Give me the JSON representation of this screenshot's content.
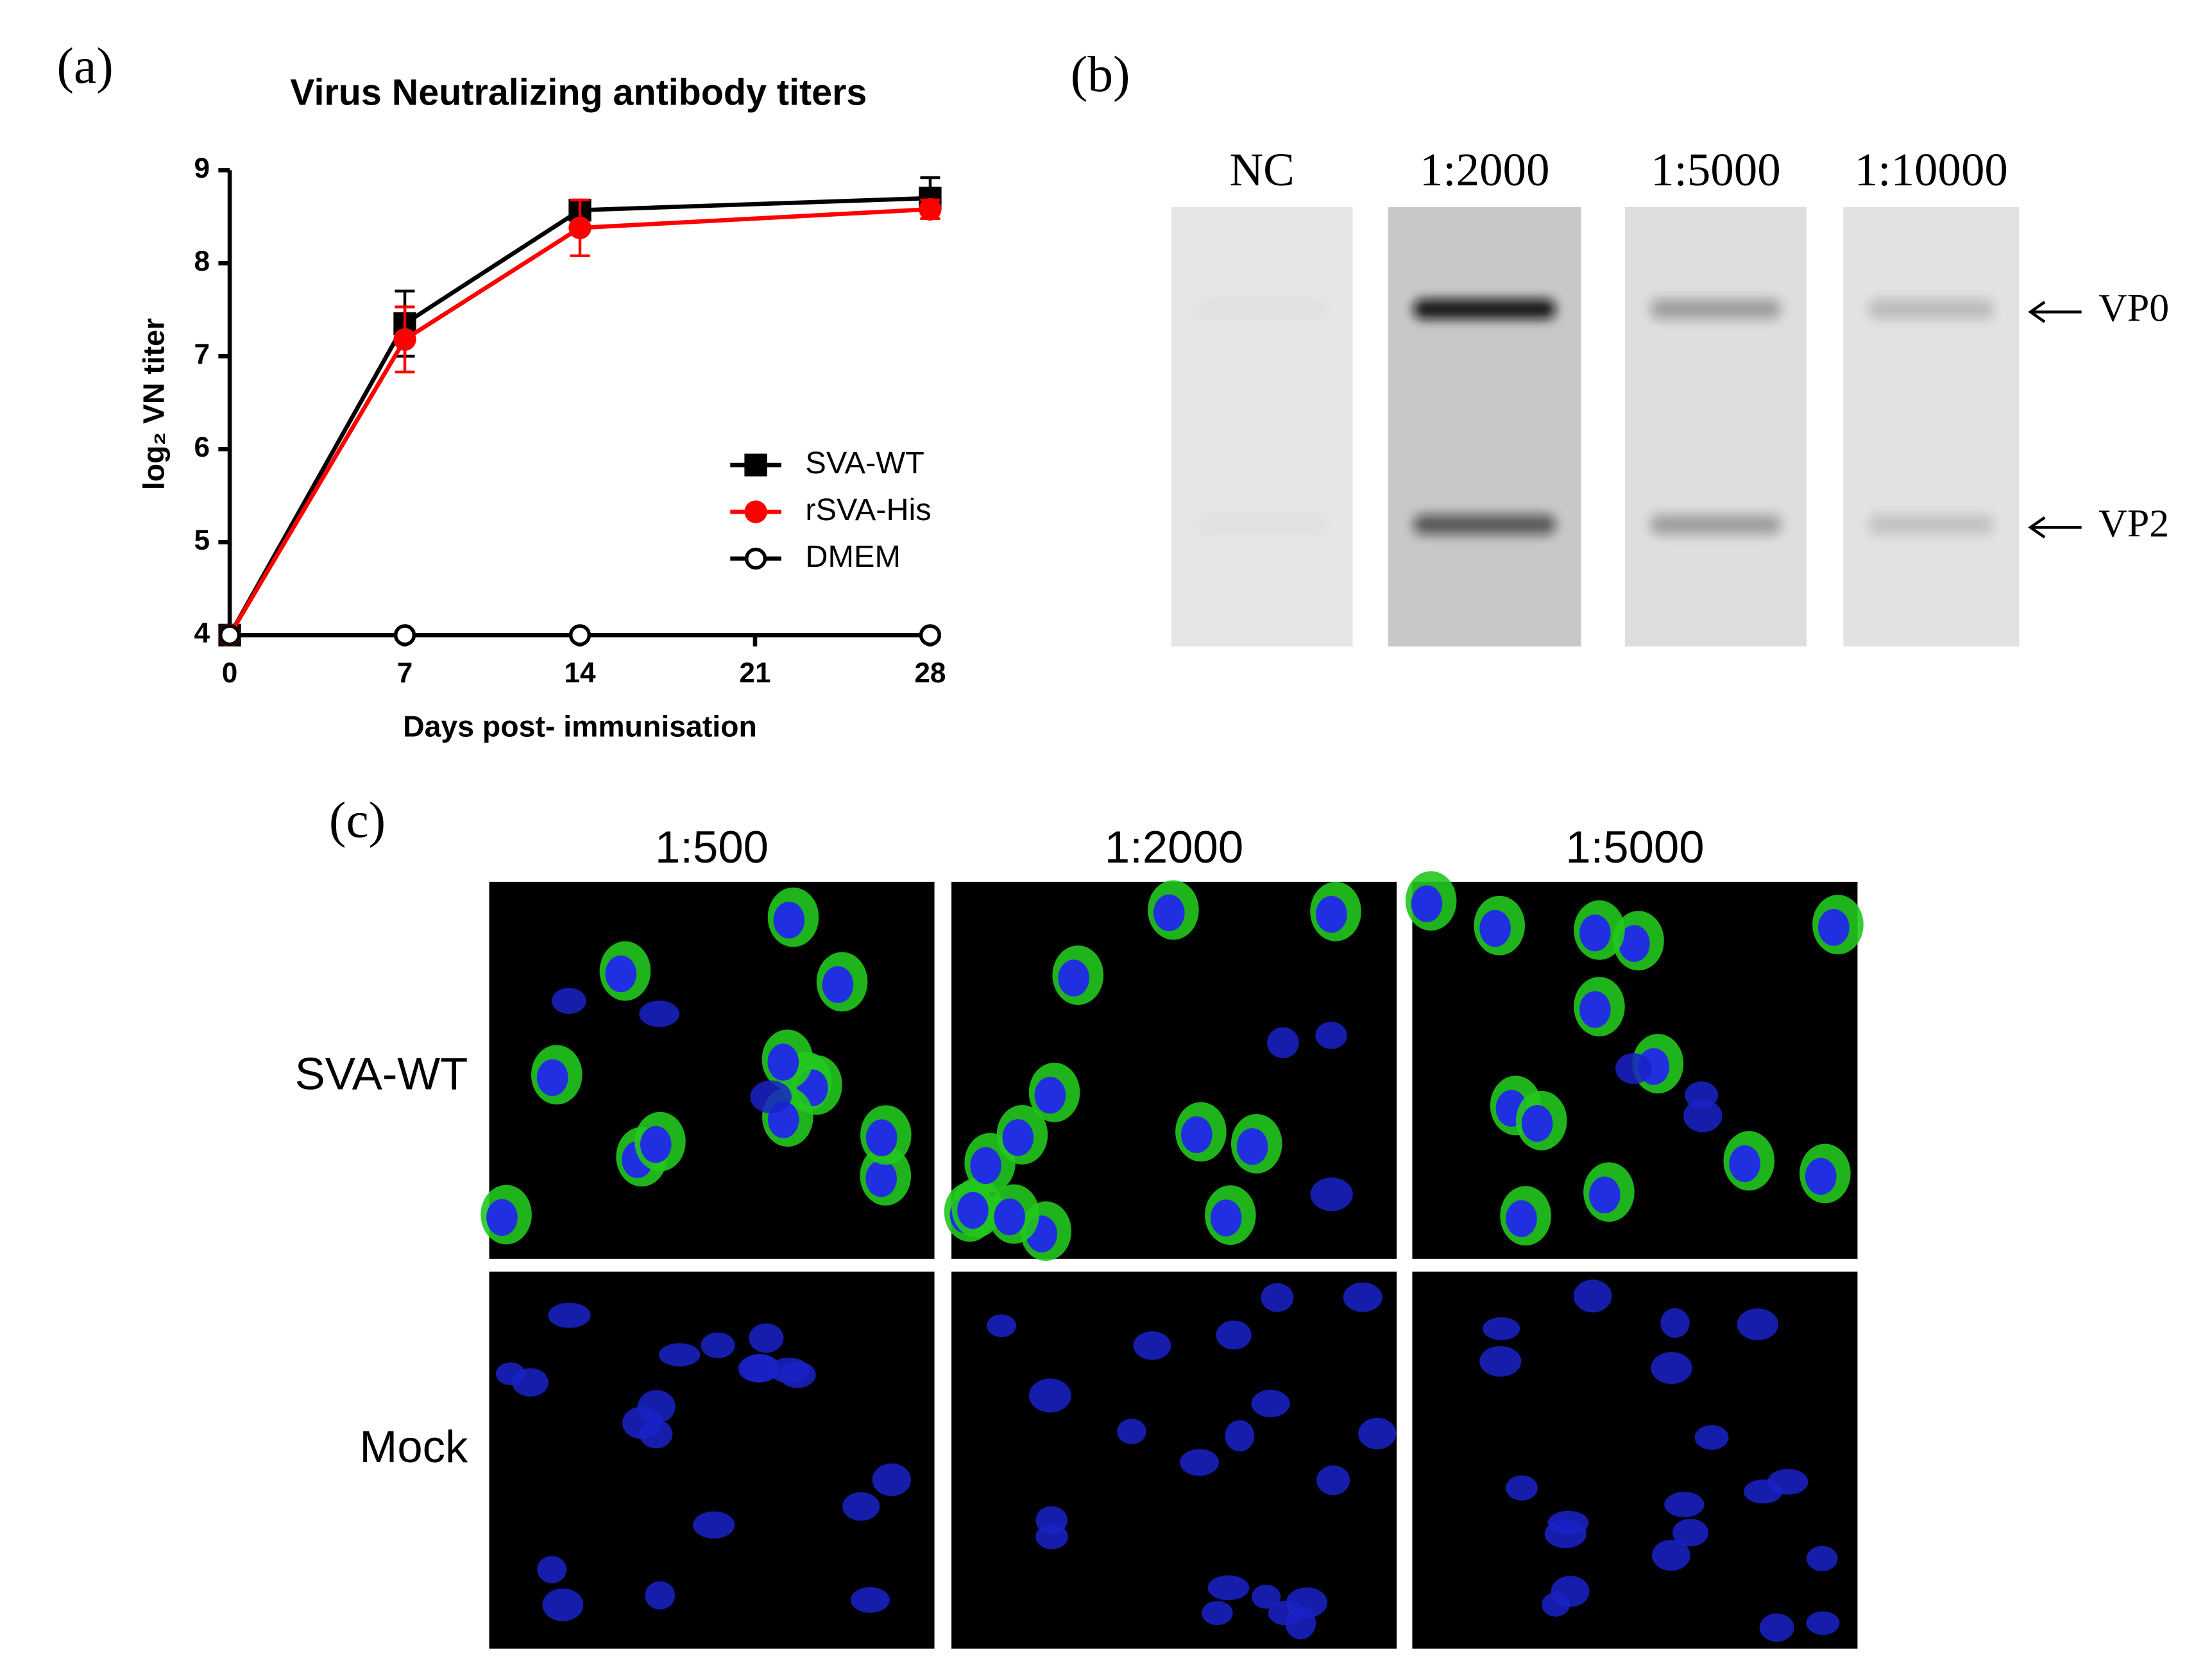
{
  "panels": {
    "a": "(a)",
    "b": "(b)",
    "c": "(c)"
  },
  "chart_data": {
    "type": "line",
    "title": "Virus Neutralizing antibody titers",
    "x_label": "Days post- immunisation",
    "y_label": "log₂ VN titer",
    "x": [
      0,
      7,
      14,
      28
    ],
    "series": [
      {
        "name": "SVA-WT",
        "color": "#000000",
        "marker": "square",
        "values": [
          4,
          7.35,
          8.57,
          8.7
        ],
        "errors": [
          0,
          0.35,
          0.1,
          0.22
        ]
      },
      {
        "name": "rSVA-His",
        "color": "#ff0000",
        "marker": "circle",
        "values": [
          4,
          7.18,
          8.38,
          8.58
        ],
        "errors": [
          0,
          0.35,
          0.3,
          0.1
        ]
      },
      {
        "name": "DMEM",
        "color": "#000000",
        "marker": "open-circle",
        "values": [
          4,
          4,
          4,
          4
        ]
      }
    ],
    "xlim": [
      0,
      28
    ],
    "xticks": [
      0,
      7,
      14,
      21,
      28
    ],
    "ylim": [
      4,
      9
    ],
    "yticks": [
      4,
      5,
      6,
      7,
      8,
      9
    ]
  },
  "blot": {
    "lanes": [
      "NC",
      "1:2000",
      "1:5000",
      "1:10000"
    ],
    "bands": [
      "VP0",
      "VP2"
    ]
  },
  "microscopy": {
    "columns": [
      "1:500",
      "1:2000",
      "1:5000"
    ],
    "rows": [
      "SVA-WT",
      "Mock"
    ]
  }
}
